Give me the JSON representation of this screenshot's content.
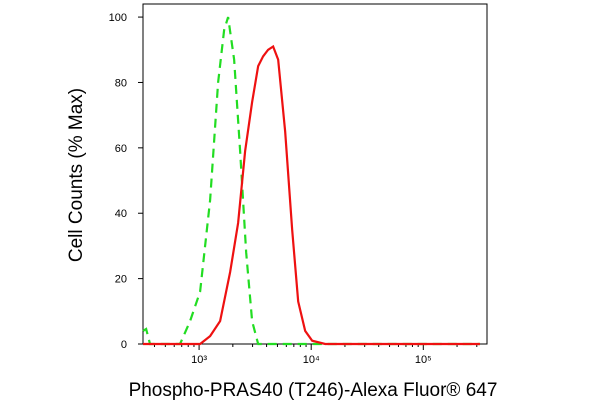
{
  "chart_data": {
    "type": "line",
    "xlabel": "Phospho-PRAS40 (T246)-Alexa Fluor® 647",
    "ylabel": "Cell Counts (% Max)",
    "xscale": "log",
    "xlim": [
      316,
      370000
    ],
    "ylim": [
      0,
      104
    ],
    "xticks": [
      {
        "value": 1000,
        "label": "10³"
      },
      {
        "value": 10000,
        "label": "10⁴"
      },
      {
        "value": 100000,
        "label": "10⁵"
      }
    ],
    "yticks": [
      0,
      20,
      40,
      60,
      80,
      100
    ],
    "series": [
      {
        "color": "#22dd22",
        "dash": true,
        "x": [
          316,
          337,
          365,
          676,
          831,
          1021,
          1254,
          1478,
          1672,
          1815,
          2054,
          2323,
          2630,
          2972,
          3365,
          320000
        ],
        "values": [
          4,
          4.6,
          0,
          0,
          7,
          16,
          44,
          80,
          96,
          100,
          87,
          59,
          28,
          7,
          0,
          0
        ]
      },
      {
        "color": "#ee1111",
        "dash": false,
        "x": [
          316,
          1021,
          1254,
          1540,
          1892,
          2229,
          2574,
          2972,
          3365,
          3726,
          4128,
          4577,
          5073,
          5858,
          6763,
          7655,
          8836,
          10210,
          13340,
          320000
        ],
        "values": [
          0,
          0,
          2.4,
          7,
          22,
          37,
          59,
          74,
          85,
          88,
          90,
          91,
          87,
          65,
          35,
          13,
          4,
          1,
          0,
          0
        ]
      }
    ]
  }
}
